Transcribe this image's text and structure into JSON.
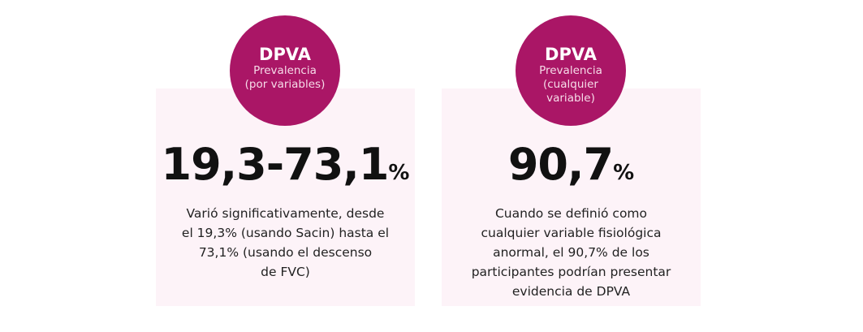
{
  "cards": [
    {
      "title": "DPVA",
      "subtitle_lines": [
        "Prevalencia",
        "(por variables)"
      ],
      "value": "19,3-73,1",
      "unit": "%",
      "description_lines": [
        "Varió significativamente, desde",
        "el 19,3% (usando Sacin) hasta el",
        "73,1% (usando el descenso",
        "de FVC)"
      ]
    },
    {
      "title": "DPVA",
      "subtitle_lines": [
        "Prevalencia",
        "(cualquier",
        "variable)"
      ],
      "value": "90,7",
      "unit": "%",
      "description_lines": [
        "Cuando se definió como",
        "cualquier variable fisiológica",
        "anormal, el 90,7% de los",
        "participantes podrían presentar",
        "evidencia de DPVA"
      ]
    }
  ],
  "colors": {
    "accent": "#aa1666",
    "card_bg": "#fdf3f8"
  }
}
